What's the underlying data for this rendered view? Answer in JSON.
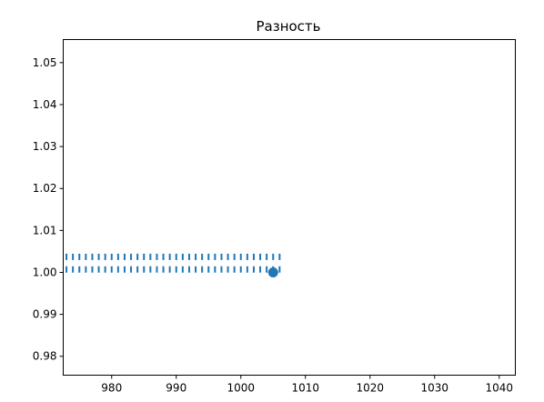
{
  "chart_data": {
    "type": "scatter",
    "title": "Разность",
    "xlabel": "",
    "ylabel": "",
    "xlim": [
      972.5,
      1042.5
    ],
    "ylim": [
      0.9755,
      1.0555
    ],
    "x_ticks": [
      980,
      990,
      1000,
      1010,
      1020,
      1030,
      1040
    ],
    "y_ticks": [
      0.98,
      0.99,
      1.0,
      1.01,
      1.02,
      1.03,
      1.04,
      1.05
    ],
    "x_tick_labels": [
      "980",
      "990",
      "1000",
      "1010",
      "1020",
      "1030",
      "1040"
    ],
    "y_tick_labels": [
      "0.98",
      "0.99",
      "1.00",
      "1.01",
      "1.02",
      "1.03",
      "1.04",
      "1.05"
    ],
    "grid": false,
    "color": "#1f77b4",
    "dash_rows": [
      {
        "y": 1.0037,
        "x_start": 973,
        "x_end": 1006,
        "step": 1
      },
      {
        "y": 1.0007,
        "x_start": 973,
        "x_end": 1006,
        "step": 1
      }
    ],
    "points": [
      {
        "x": 1005,
        "y": 1.0
      }
    ]
  }
}
